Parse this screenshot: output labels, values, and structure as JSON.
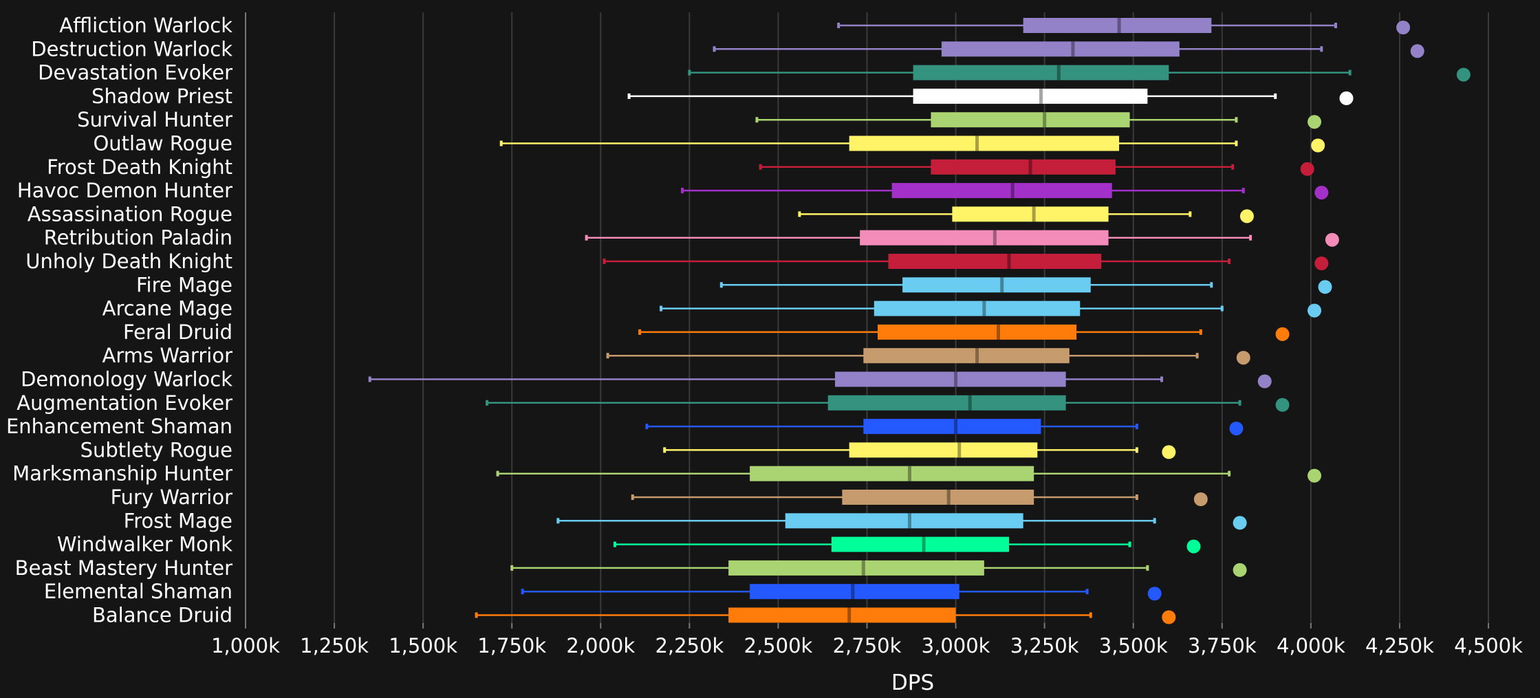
{
  "chart_data": {
    "type": "boxplot",
    "xlabel": "DPS",
    "x_unit": "k",
    "xlim": [
      1000,
      4500
    ],
    "x_ticks": [
      1000,
      1250,
      1500,
      1750,
      2000,
      2250,
      2500,
      2750,
      3000,
      3250,
      3500,
      3750,
      4000,
      4250,
      4500
    ],
    "x_tick_labels": [
      "1,000k",
      "1,250k",
      "1,500k",
      "1,750k",
      "2,000k",
      "2,250k",
      "2,500k",
      "2,750k",
      "3,000k",
      "3,250k",
      "3,500k",
      "3,750k",
      "4,000k",
      "4,250k",
      "4,500k"
    ],
    "grid": "vertical",
    "series": [
      {
        "name": "Affliction Warlock",
        "color": "#9482C9",
        "min": 2670,
        "q1": 3190,
        "median": 3460,
        "q3": 3720,
        "max": 4070,
        "outlier": 4260
      },
      {
        "name": "Destruction Warlock",
        "color": "#9482C9",
        "min": 2320,
        "q1": 2960,
        "median": 3330,
        "q3": 3630,
        "max": 4030,
        "outlier": 4300
      },
      {
        "name": "Devastation Evoker",
        "color": "#33937F",
        "min": 2250,
        "q1": 2880,
        "median": 3290,
        "q3": 3600,
        "max": 4110,
        "outlier": 4430
      },
      {
        "name": "Shadow Priest",
        "color": "#FFFFFF",
        "min": 2080,
        "q1": 2880,
        "median": 3240,
        "q3": 3540,
        "max": 3900,
        "outlier": 4100
      },
      {
        "name": "Survival Hunter",
        "color": "#AAD372",
        "min": 2440,
        "q1": 2930,
        "median": 3250,
        "q3": 3490,
        "max": 3790,
        "outlier": 4010
      },
      {
        "name": "Outlaw Rogue",
        "color": "#FFF468",
        "min": 1720,
        "q1": 2700,
        "median": 3060,
        "q3": 3460,
        "max": 3790,
        "outlier": 4020
      },
      {
        "name": "Frost Death Knight",
        "color": "#C41E3A",
        "min": 2450,
        "q1": 2930,
        "median": 3210,
        "q3": 3450,
        "max": 3780,
        "outlier": 3990
      },
      {
        "name": "Havoc Demon Hunter",
        "color": "#A330C9",
        "min": 2230,
        "q1": 2820,
        "median": 3160,
        "q3": 3440,
        "max": 3810,
        "outlier": 4030
      },
      {
        "name": "Assassination Rogue",
        "color": "#FFF468",
        "min": 2560,
        "q1": 2990,
        "median": 3220,
        "q3": 3430,
        "max": 3660,
        "outlier": 3820
      },
      {
        "name": "Retribution Paladin",
        "color": "#F48CBA",
        "min": 1960,
        "q1": 2730,
        "median": 3110,
        "q3": 3430,
        "max": 3830,
        "outlier": 4060
      },
      {
        "name": "Unholy Death Knight",
        "color": "#C41E3A",
        "min": 2010,
        "q1": 2810,
        "median": 3150,
        "q3": 3410,
        "max": 3770,
        "outlier": 4030
      },
      {
        "name": "Fire Mage",
        "color": "#69CCF0",
        "min": 2340,
        "q1": 2850,
        "median": 3130,
        "q3": 3380,
        "max": 3720,
        "outlier": 4040
      },
      {
        "name": "Arcane Mage",
        "color": "#69CCF0",
        "min": 2170,
        "q1": 2770,
        "median": 3080,
        "q3": 3350,
        "max": 3750,
        "outlier": 4010
      },
      {
        "name": "Feral Druid",
        "color": "#FF7C0A",
        "min": 2110,
        "q1": 2780,
        "median": 3120,
        "q3": 3340,
        "max": 3690,
        "outlier": 3920
      },
      {
        "name": "Arms Warrior",
        "color": "#C69B6D",
        "min": 2020,
        "q1": 2740,
        "median": 3060,
        "q3": 3320,
        "max": 3680,
        "outlier": 3810
      },
      {
        "name": "Demonology Warlock",
        "color": "#9482C9",
        "min": 1350,
        "q1": 2660,
        "median": 3000,
        "q3": 3310,
        "max": 3580,
        "outlier": 3870
      },
      {
        "name": "Augmentation Evoker",
        "color": "#33937F",
        "min": 1680,
        "q1": 2640,
        "median": 3040,
        "q3": 3310,
        "max": 3800,
        "outlier": 3920
      },
      {
        "name": "Enhancement Shaman",
        "color": "#2359FF",
        "min": 2130,
        "q1": 2740,
        "median": 3000,
        "q3": 3240,
        "max": 3510,
        "outlier": 3790
      },
      {
        "name": "Subtlety Rogue",
        "color": "#FFF468",
        "min": 2180,
        "q1": 2700,
        "median": 3010,
        "q3": 3230,
        "max": 3510,
        "outlier": 3600
      },
      {
        "name": "Marksmanship Hunter",
        "color": "#AAD372",
        "min": 1710,
        "q1": 2420,
        "median": 2870,
        "q3": 3220,
        "max": 3770,
        "outlier": 4010
      },
      {
        "name": "Fury Warrior",
        "color": "#C69B6D",
        "min": 2090,
        "q1": 2680,
        "median": 2980,
        "q3": 3220,
        "max": 3510,
        "outlier": 3690
      },
      {
        "name": "Frost Mage",
        "color": "#69CCF0",
        "min": 1880,
        "q1": 2520,
        "median": 2870,
        "q3": 3190,
        "max": 3560,
        "outlier": 3800
      },
      {
        "name": "Windwalker Monk",
        "color": "#00FF98",
        "min": 2040,
        "q1": 2650,
        "median": 2910,
        "q3": 3150,
        "max": 3490,
        "outlier": 3670
      },
      {
        "name": "Beast Mastery Hunter",
        "color": "#AAD372",
        "min": 1750,
        "q1": 2360,
        "median": 2740,
        "q3": 3080,
        "max": 3540,
        "outlier": 3800
      },
      {
        "name": "Elemental Shaman",
        "color": "#2359FF",
        "min": 1780,
        "q1": 2420,
        "median": 2710,
        "q3": 3010,
        "max": 3370,
        "outlier": 3560
      },
      {
        "name": "Balance Druid",
        "color": "#FF7C0A",
        "min": 1650,
        "q1": 2360,
        "median": 2700,
        "q3": 3000,
        "max": 3380,
        "outlier": 3600
      }
    ]
  }
}
